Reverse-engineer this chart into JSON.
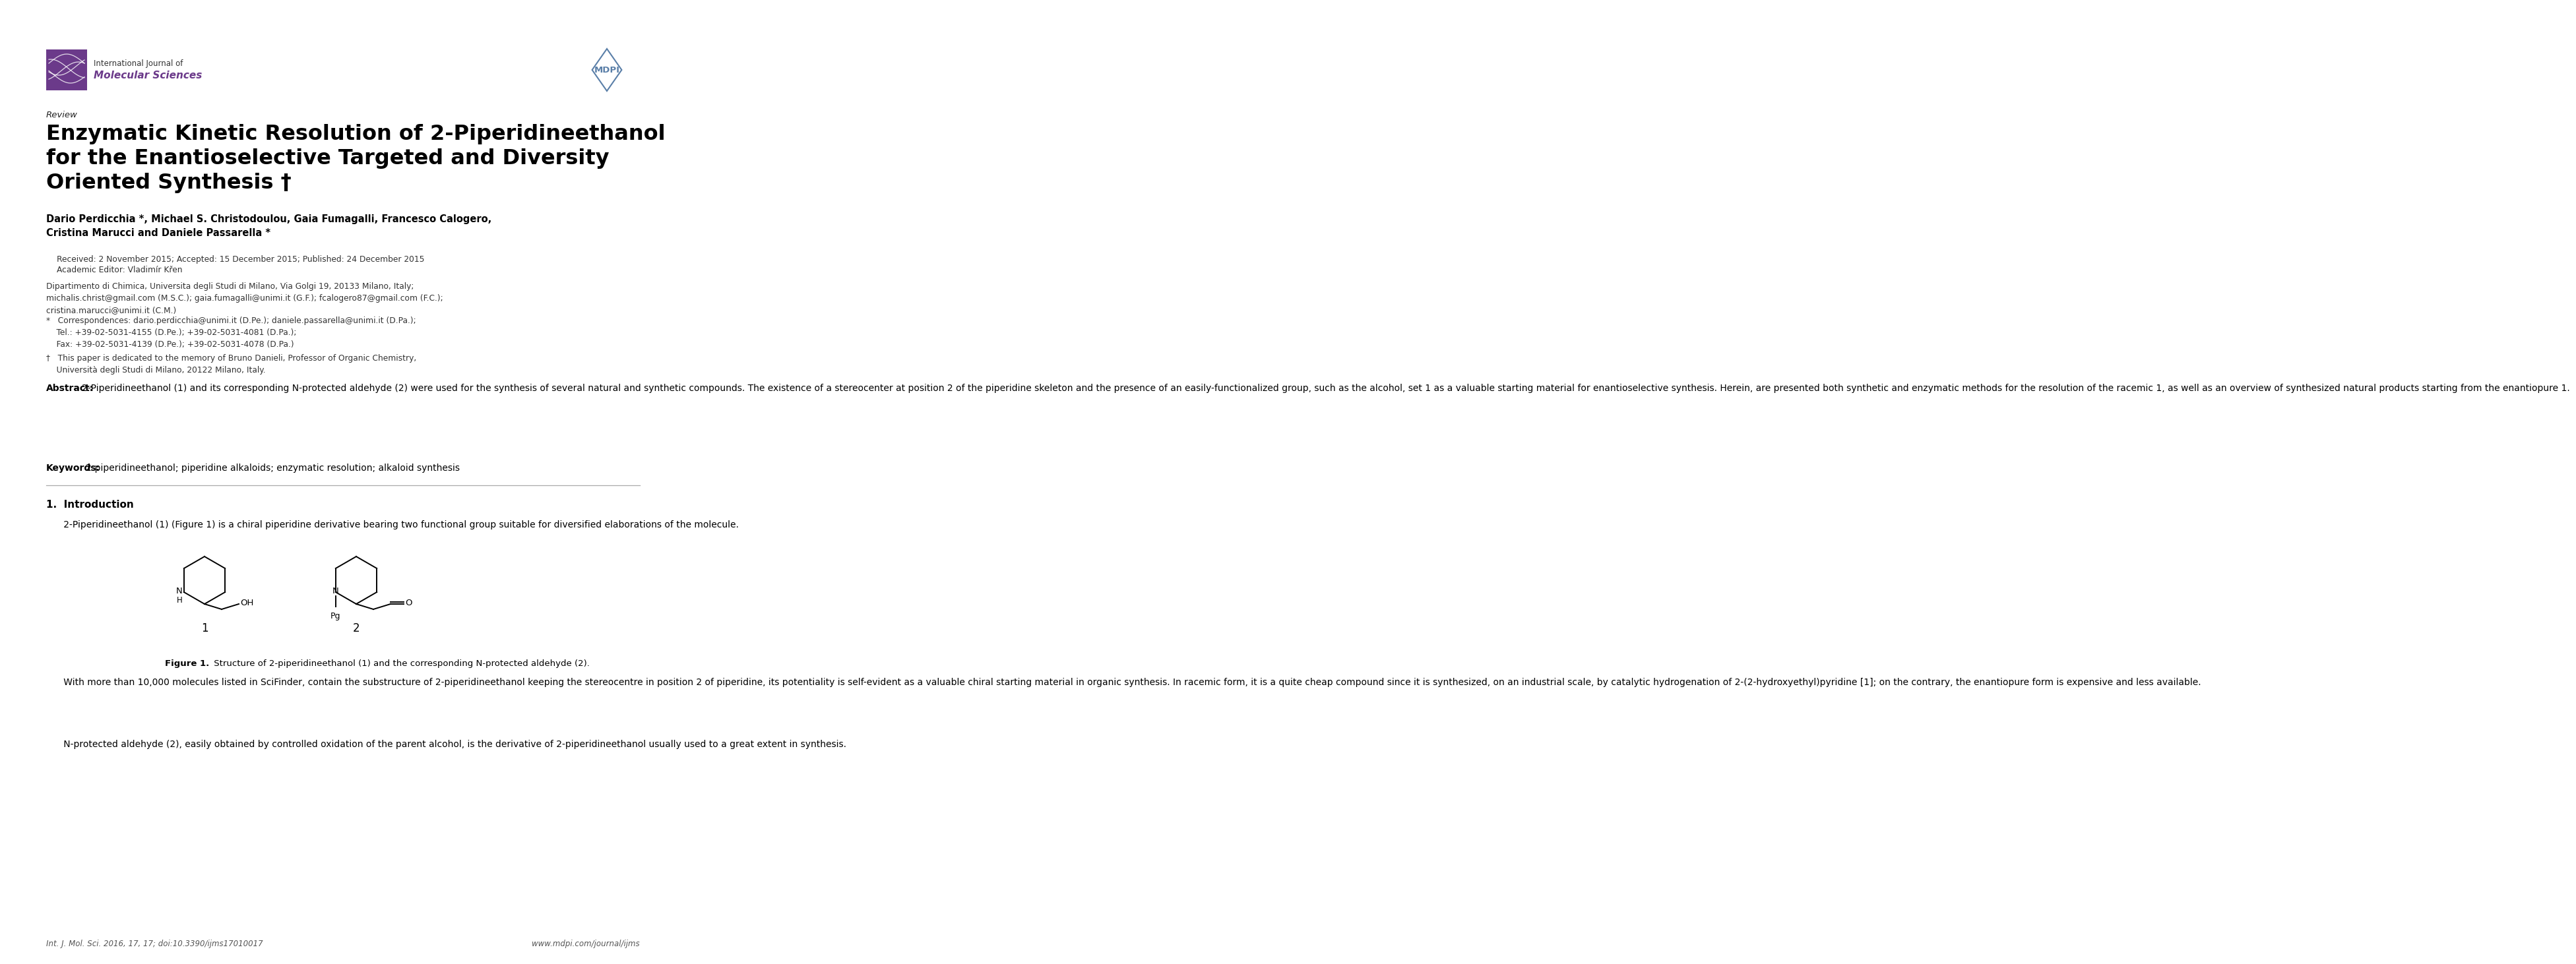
{
  "bg_color": "#ffffff",
  "title_main": "Enzymatic Kinetic Resolution of 2-Piperidineethanol\nfor the Enantioselective Targeted and Diversity\nOriented Synthesis †",
  "review_label": "Review",
  "authors": "Dario Perdicchia *, Michael S. Christodoulou, Gaia Fumagalli, Francesco Calogero,\nCristina Marucci and Daniele Passarella *",
  "received_line": "Received: 2 November 2015; Accepted: 15 December 2015; Published: 24 December 2015",
  "editor_line": "Academic Editor: Vladimír Křen",
  "affiliation": "Dipartimento di Chimica, Universita degli Studi di Milano, Via Golgi 19, 20133 Milano, Italy;\nmichalis.christ@gmail.com (M.S.C.); gaia.fumagalli@unimi.it (G.F.); fcalogero87@gmail.com (F.C.);\ncristina.marucci@unimi.it (C.M.)",
  "correspondence": "*   Correspondences: dario.perdicchia@unimi.it (D.Pe.); daniele.passarella@unimi.it (D.Pa.);\n    Tel.: +39-02-5031-4155 (D.Pe.); +39-02-5031-4081 (D.Pa.);\n    Fax: +39-02-5031-4139 (D.Pe.); +39-02-5031-4078 (D.Pa.)",
  "dagger": "†   This paper is dedicated to the memory of Bruno Danieli, Professor of Organic Chemistry,\n    Università degli Studi di Milano, 20122 Milano, Italy.",
  "abstract_title": "Abstract:",
  "abstract_text": "2-Piperidineethanol (1) and its corresponding N-protected aldehyde (2) were used for the synthesis of several natural and synthetic compounds. The existence of a stereocenter at position 2 of the piperidine skeleton and the presence of an easily-functionalized group, such as the alcohol, set 1 as a valuable starting material for enantioselective synthesis. Herein, are presented both synthetic and enzymatic methods for the resolution of the racemic 1, as well as an overview of synthesized natural products starting from the enantiopure 1.",
  "keywords_title": "Keywords:",
  "keywords_text": "2-piperidineethanol; piperidine alkaloids; enzymatic resolution; alkaloid synthesis",
  "section1_title": "1.  Introduction",
  "intro_para1": "      2-Piperidineethanol (1) (Figure 1) is a chiral piperidine derivative bearing two functional group suitable for diversified elaborations of the molecule.",
  "figure1_caption_bold": "Figure 1.",
  "figure1_caption_rest": " Structure of 2-piperidineethanol (1) and the corresponding N-protected aldehyde (2).",
  "intro_para2a": "      With more than 10,000 molecules listed in SciFinder, contain the substructure of 2-piperidineethanol keeping the stereocentre in position 2 of piperidine, its potentiality is self-evident as a valuable chiral starting material in organic synthesis. In racemic form, it is a quite cheap compound since it is synthesized, on an industrial scale, by catalytic hydrogenation of 2-(2-hydroxyethyl)pyridine [1]; on the contrary, the enantiopure form is expensive and less available.",
  "intro_para2b": "      N-protected aldehyde (2), easily obtained by controlled oxidation of the parent alcohol, is the derivative of 2-piperidineethanol usually used to a great extent in synthesis.",
  "footer_left": "Int. J. Mol. Sci. 2016, 17, 17; doi:10.3390/ijms17010017",
  "footer_right": "www.mdpi.com/journal/ijms",
  "journal_name_line1": "International Journal of",
  "journal_name_line2": "Molecular Sciences",
  "logo_color": "#6B3A8A",
  "mdpi_color": "#5a7fa8"
}
